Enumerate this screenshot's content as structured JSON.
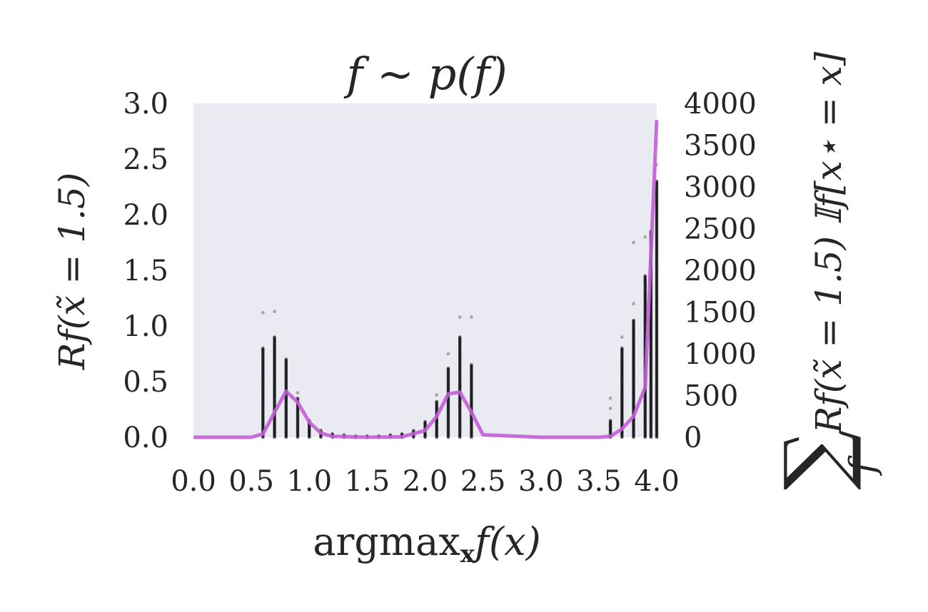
{
  "chart_data": {
    "type": "scatter",
    "title": "f ~ p(f)",
    "xlabel": "argmax",
    "xlabel_sub": "x",
    "xlabel_tail": "f(x)",
    "ylabel": "Rf(x̃ = 1.5)",
    "ylabel_right": "Rf(x̃ = 1.5) 𝕀f[x⋆ = x]",
    "ylabel_right_prefix": "∑",
    "ylabel_right_sub": "f",
    "xlim": [
      0.0,
      4.0
    ],
    "ylim": [
      0.0,
      3.0
    ],
    "ylim_right": [
      0,
      4000
    ],
    "xticks": [
      "0.0",
      "0.5",
      "1.0",
      "1.5",
      "2.0",
      "2.5",
      "3.0",
      "3.5",
      "4.0"
    ],
    "yticks": [
      "0.0",
      "0.5",
      "1.0",
      "1.5",
      "2.0",
      "2.5",
      "3.0"
    ],
    "yticks_right": [
      "0",
      "500",
      "1000",
      "1500",
      "2000",
      "2500",
      "3000",
      "3500",
      "4000"
    ],
    "grid": false,
    "background": "#eaeaf2",
    "scatter_color": "#000000",
    "line_color": "#c25fd6",
    "scatter_columns": [
      {
        "x": 0.6,
        "ymax": 0.8,
        "outliers": [
          1.12
        ]
      },
      {
        "x": 0.7,
        "ymax": 0.9,
        "outliers": [
          1.13
        ]
      },
      {
        "x": 0.8,
        "ymax": 0.7,
        "outliers": []
      },
      {
        "x": 0.9,
        "ymax": 0.35,
        "outliers": [
          0.4
        ]
      },
      {
        "x": 1.0,
        "ymax": 0.15,
        "outliers": []
      },
      {
        "x": 1.1,
        "ymax": 0.06,
        "outliers": []
      },
      {
        "x": 1.2,
        "ymax": 0.03,
        "outliers": []
      },
      {
        "x": 1.3,
        "ymax": 0.02,
        "outliers": []
      },
      {
        "x": 1.4,
        "ymax": 0.01,
        "outliers": []
      },
      {
        "x": 1.5,
        "ymax": 0.01,
        "outliers": []
      },
      {
        "x": 1.6,
        "ymax": 0.01,
        "outliers": []
      },
      {
        "x": 1.7,
        "ymax": 0.02,
        "outliers": []
      },
      {
        "x": 1.8,
        "ymax": 0.03,
        "outliers": []
      },
      {
        "x": 1.9,
        "ymax": 0.06,
        "outliers": []
      },
      {
        "x": 2.0,
        "ymax": 0.14,
        "outliers": []
      },
      {
        "x": 2.1,
        "ymax": 0.32,
        "outliers": [
          0.38
        ]
      },
      {
        "x": 2.2,
        "ymax": 0.62,
        "outliers": [
          0.75
        ]
      },
      {
        "x": 2.3,
        "ymax": 0.9,
        "outliers": [
          1.08
        ]
      },
      {
        "x": 2.4,
        "ymax": 0.65,
        "outliers": [
          1.08
        ]
      },
      {
        "x": 3.6,
        "ymax": 0.15,
        "outliers": [
          0.35,
          0.26
        ]
      },
      {
        "x": 3.7,
        "ymax": 0.8,
        "outliers": [
          0.9
        ]
      },
      {
        "x": 3.8,
        "ymax": 1.05,
        "outliers": [
          1.2,
          1.75
        ]
      },
      {
        "x": 3.9,
        "ymax": 1.45,
        "outliers": [
          1.8
        ]
      },
      {
        "x": 3.95,
        "ymax": 1.85,
        "outliers": []
      },
      {
        "x": 4.0,
        "ymax": 2.3,
        "outliers": [
          2.45
        ]
      }
    ],
    "line_series": {
      "x": [
        0.0,
        0.5,
        0.6,
        0.7,
        0.8,
        0.9,
        1.0,
        1.1,
        1.2,
        1.5,
        1.8,
        2.0,
        2.1,
        2.2,
        2.3,
        2.4,
        2.5,
        3.0,
        3.5,
        3.6,
        3.7,
        3.8,
        3.9,
        4.0
      ],
      "y": [
        0,
        0,
        40,
        300,
        550,
        420,
        180,
        50,
        10,
        0,
        5,
        80,
        250,
        520,
        540,
        300,
        30,
        0,
        0,
        10,
        100,
        250,
        600,
        3800
      ]
    }
  }
}
